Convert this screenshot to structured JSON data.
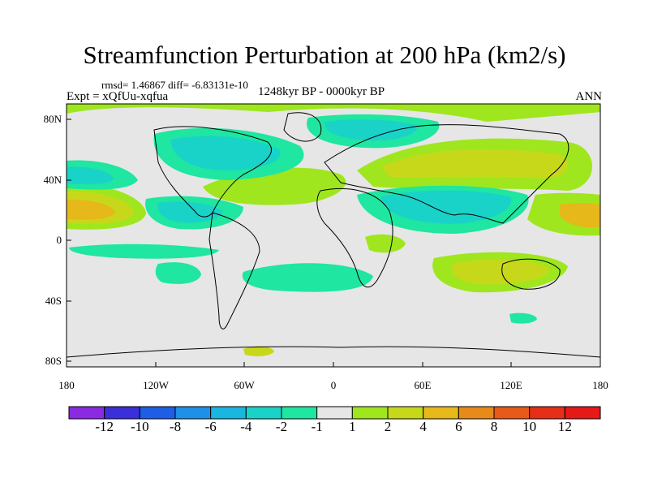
{
  "title": "Streamfunction Perturbation at 200 hPa (km2/s)",
  "stats": "rmsd= 1.46867 diff= -6.83131e-10",
  "period": "1248kyr BP - 0000kyr BP",
  "experiment": "Expt = xQfUu-xqfua",
  "season": "ANN",
  "lat_labels": [
    "80N",
    "40N",
    "0",
    "40S",
    "80S"
  ],
  "lon_labels": [
    "180",
    "120W",
    "60W",
    "0",
    "60E",
    "120E",
    "180"
  ],
  "colorbar": {
    "labels": [
      "-12",
      "-10",
      "-8",
      "-6",
      "-4",
      "-2",
      "-1",
      "1",
      "2",
      "4",
      "6",
      "8",
      "10",
      "12"
    ],
    "colors": [
      "#8a2be2",
      "#3a2fd8",
      "#1e5ee6",
      "#1e90e8",
      "#19b6e0",
      "#19d3c8",
      "#1fe6a0",
      "#e6e6e6",
      "#9fe61e",
      "#c7d81a",
      "#e6b81a",
      "#e68a19",
      "#e65a19",
      "#e62e19",
      "#e61919"
    ]
  }
}
